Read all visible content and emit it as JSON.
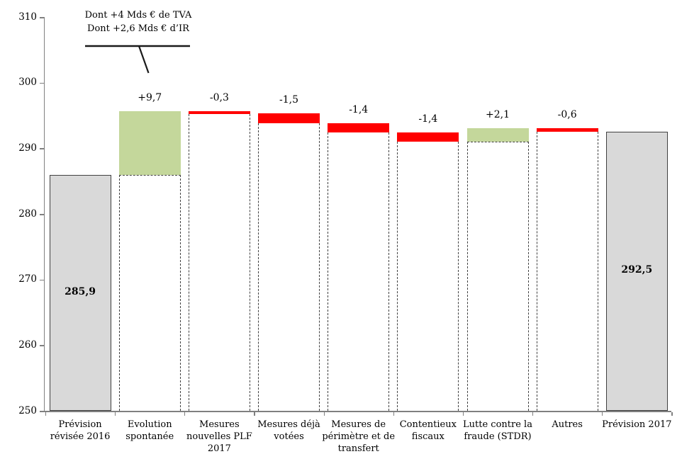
{
  "chart_data": {
    "type": "bar",
    "subtype": "waterfall",
    "title": "",
    "xlabel": "",
    "ylabel": "",
    "ylim": [
      250,
      310
    ],
    "yticks": [
      250,
      260,
      270,
      280,
      290,
      300,
      310
    ],
    "grid": false,
    "legend": "none",
    "colors": {
      "increase": "#C4D79B",
      "decrease": "#FF0000",
      "total_fill": "#D9D9D9",
      "total_border": "#404040",
      "connector": "#404040",
      "axis": "#808080",
      "text": "#000000",
      "leader_line": "#1a1a1a"
    },
    "items": [
      {
        "label": "Prévision révisée 2016",
        "type": "total",
        "value": 285.9,
        "display": "285,9"
      },
      {
        "label": "Evolution spontanée",
        "type": "delta",
        "value": 9.7,
        "display": "+9,7"
      },
      {
        "label": "Mesures nouvelles PLF 2017",
        "type": "delta",
        "value": -0.3,
        "display": "-0,3"
      },
      {
        "label": "Mesures déjà votées",
        "type": "delta",
        "value": -1.5,
        "display": "-1,5"
      },
      {
        "label": "Mesures de périmètre et de transfert",
        "type": "delta",
        "value": -1.4,
        "display": "-1,4"
      },
      {
        "label": "Contentieux fiscaux",
        "type": "delta",
        "value": -1.4,
        "display": "-1,4"
      },
      {
        "label": "Lutte contre la fraude (STDR)",
        "type": "delta",
        "value": 2.1,
        "display": "+2,1"
      },
      {
        "label": "Autres",
        "type": "delta",
        "value": -0.6,
        "display": "-0,6"
      },
      {
        "label": "Prévision 2017",
        "type": "total",
        "value": 292.5,
        "display": "292,5"
      }
    ],
    "annotation": {
      "line1": "Dont +4 Mds € de TVA",
      "line2": "Dont +2,6 Mds € d’IR"
    }
  }
}
